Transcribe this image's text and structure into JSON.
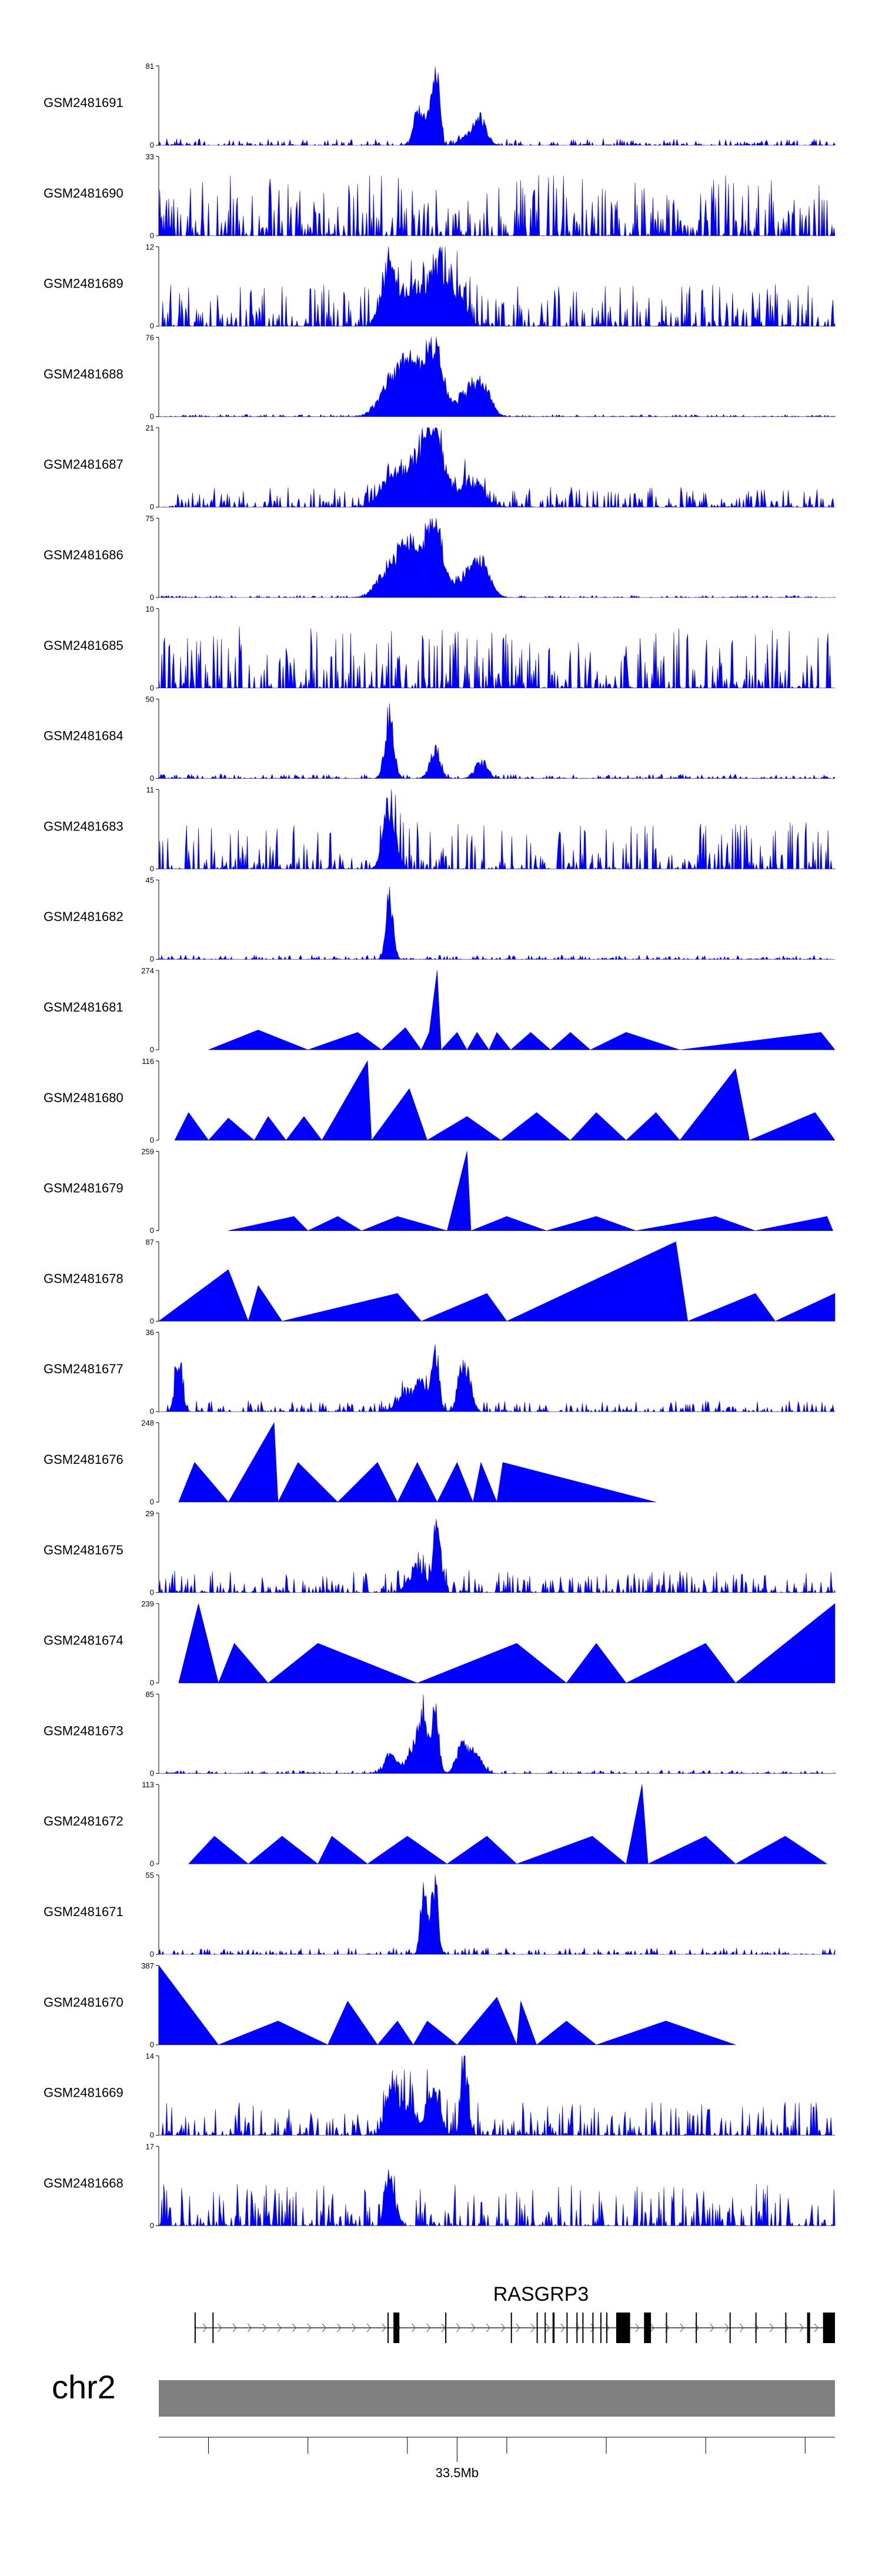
{
  "colors": {
    "signal": "#0000ff",
    "axis": "#000000",
    "ideogram": "#808080",
    "gene": "#000000"
  },
  "chart_data": {
    "type": "area",
    "title": "",
    "xlabel": "",
    "genome": {
      "chromosome": "chr2",
      "xlim_mb": [
        33.35,
        33.69
      ]
    },
    "tracks": [
      {
        "sample": "GSM2481691",
        "ymax_label": "81",
        "ymin_label": "0",
        "style": "dense",
        "peaks": [
          [
            33.49,
            1.0,
            0.0015
          ],
          [
            33.487,
            0.55,
            0.002
          ],
          [
            33.48,
            0.45,
            0.002
          ],
          [
            33.483,
            0.22,
            0.003
          ],
          [
            33.512,
            0.38,
            0.003
          ],
          [
            33.506,
            0.15,
            0.004
          ]
        ],
        "noise": 0.06
      },
      {
        "sample": "GSM2481690",
        "ymax_label": "33",
        "ymin_label": "0",
        "style": "dense",
        "peaks": [],
        "noise": 0.55
      },
      {
        "sample": "GSM2481689",
        "ymax_label": "12",
        "ymin_label": "0",
        "style": "dense",
        "peaks": [
          [
            33.466,
            0.9,
            0.004
          ],
          [
            33.49,
            0.95,
            0.004
          ],
          [
            33.478,
            0.6,
            0.005
          ],
          [
            33.5,
            0.5,
            0.004
          ]
        ],
        "noise": 0.38
      },
      {
        "sample": "GSM2481688",
        "ymax_label": "76",
        "ymin_label": "0",
        "style": "dense",
        "peaks": [
          [
            33.467,
            0.55,
            0.006
          ],
          [
            33.475,
            0.4,
            0.004
          ],
          [
            33.481,
            0.55,
            0.006
          ],
          [
            33.489,
            0.95,
            0.004
          ],
          [
            33.506,
            0.38,
            0.006
          ],
          [
            33.513,
            0.35,
            0.004
          ]
        ],
        "noise": 0.02
      },
      {
        "sample": "GSM2481687",
        "ymax_label": "21",
        "ymin_label": "0",
        "style": "dense",
        "peaks": [
          [
            33.468,
            0.5,
            0.006
          ],
          [
            33.482,
            0.6,
            0.006
          ],
          [
            33.489,
            0.95,
            0.005
          ],
          [
            33.507,
            0.4,
            0.006
          ]
        ],
        "noise": 0.18
      },
      {
        "sample": "GSM2481686",
        "ymax_label": "75",
        "ymin_label": "0",
        "style": "dense",
        "peaks": [
          [
            33.467,
            0.5,
            0.006
          ],
          [
            33.475,
            0.4,
            0.004
          ],
          [
            33.482,
            0.55,
            0.006
          ],
          [
            33.489,
            0.95,
            0.004
          ],
          [
            33.506,
            0.4,
            0.006
          ],
          [
            33.513,
            0.35,
            0.004
          ]
        ],
        "noise": 0.02
      },
      {
        "sample": "GSM2481685",
        "ymax_label": "10",
        "ymin_label": "0",
        "style": "dense",
        "peaks": [],
        "noise": 0.55
      },
      {
        "sample": "GSM2481684",
        "ymax_label": "50",
        "ymin_label": "0",
        "style": "dense",
        "peaks": [
          [
            33.466,
            1.0,
            0.0022
          ],
          [
            33.489,
            0.45,
            0.0025
          ],
          [
            33.512,
            0.25,
            0.003
          ]
        ],
        "noise": 0.04
      },
      {
        "sample": "GSM2481683",
        "ymax_label": "11",
        "ymin_label": "0",
        "style": "dense",
        "peaks": [
          [
            33.466,
            0.95,
            0.003
          ]
        ],
        "noise": 0.42
      },
      {
        "sample": "GSM2481682",
        "ymax_label": "45",
        "ymin_label": "0",
        "style": "dense",
        "peaks": [
          [
            33.466,
            1.0,
            0.0018
          ]
        ],
        "noise": 0.04
      },
      {
        "sample": "GSM2481681",
        "ymax_label": "274",
        "ymin_label": "0",
        "style": "sparse",
        "points": [
          [
            33.375,
            0.0
          ],
          [
            33.4,
            0.25
          ],
          [
            33.425,
            0.0
          ],
          [
            33.45,
            0.22
          ],
          [
            33.462,
            0.0
          ],
          [
            33.474,
            0.28
          ],
          [
            33.482,
            0.0
          ],
          [
            33.486,
            0.22
          ],
          [
            33.49,
            1.0
          ],
          [
            33.492,
            0.0
          ],
          [
            33.5,
            0.22
          ],
          [
            33.505,
            0.0
          ],
          [
            33.51,
            0.22
          ],
          [
            33.516,
            0.0
          ],
          [
            33.52,
            0.22
          ],
          [
            33.527,
            0.0
          ],
          [
            33.537,
            0.22
          ],
          [
            33.547,
            0.0
          ],
          [
            33.557,
            0.22
          ],
          [
            33.567,
            0.0
          ],
          [
            33.585,
            0.22
          ],
          [
            33.612,
            0.0
          ],
          [
            33.683,
            0.22
          ],
          [
            33.69,
            0.0
          ]
        ]
      },
      {
        "sample": "GSM2481680",
        "ymax_label": "116",
        "ymin_label": "0",
        "style": "sparse",
        "points": [
          [
            33.358,
            0.0
          ],
          [
            33.365,
            0.35
          ],
          [
            33.375,
            0.0
          ],
          [
            33.385,
            0.28
          ],
          [
            33.398,
            0.0
          ],
          [
            33.405,
            0.3
          ],
          [
            33.414,
            0.0
          ],
          [
            33.423,
            0.3
          ],
          [
            33.432,
            0.0
          ],
          [
            33.455,
            1.0
          ],
          [
            33.457,
            0.0
          ],
          [
            33.476,
            0.65
          ],
          [
            33.485,
            0.0
          ],
          [
            33.505,
            0.3
          ],
          [
            33.522,
            0.0
          ],
          [
            33.54,
            0.35
          ],
          [
            33.557,
            0.0
          ],
          [
            33.57,
            0.35
          ],
          [
            33.585,
            0.0
          ],
          [
            33.6,
            0.35
          ],
          [
            33.612,
            0.0
          ],
          [
            33.64,
            0.9
          ],
          [
            33.647,
            0.0
          ],
          [
            33.68,
            0.35
          ],
          [
            33.69,
            0.0
          ]
        ]
      },
      {
        "sample": "GSM2481679",
        "ymax_label": "259",
        "ymin_label": "0",
        "style": "sparse",
        "points": [
          [
            33.385,
            0.0
          ],
          [
            33.418,
            0.18
          ],
          [
            33.425,
            0.0
          ],
          [
            33.44,
            0.18
          ],
          [
            33.452,
            0.0
          ],
          [
            33.47,
            0.18
          ],
          [
            33.495,
            0.0
          ],
          [
            33.505,
            1.0
          ],
          [
            33.507,
            0.0
          ],
          [
            33.525,
            0.18
          ],
          [
            33.545,
            0.0
          ],
          [
            33.57,
            0.18
          ],
          [
            33.59,
            0.0
          ],
          [
            33.63,
            0.18
          ],
          [
            33.65,
            0.0
          ],
          [
            33.686,
            0.18
          ],
          [
            33.689,
            0.0
          ]
        ]
      },
      {
        "sample": "GSM2481678",
        "ymax_label": "87",
        "ymin_label": "0",
        "style": "sparse",
        "points": [
          [
            33.35,
            0.0
          ],
          [
            33.385,
            0.65
          ],
          [
            33.395,
            0.0
          ],
          [
            33.4,
            0.45
          ],
          [
            33.412,
            0.0
          ],
          [
            33.47,
            0.35
          ],
          [
            33.482,
            0.0
          ],
          [
            33.515,
            0.35
          ],
          [
            33.525,
            0.0
          ],
          [
            33.61,
            1.0
          ],
          [
            33.616,
            0.0
          ],
          [
            33.65,
            0.35
          ],
          [
            33.66,
            0.0
          ],
          [
            33.69,
            0.35
          ]
        ]
      },
      {
        "sample": "GSM2481677",
        "ymax_label": "36",
        "ymin_label": "0",
        "style": "dense",
        "peaks": [
          [
            33.36,
            0.85,
            0.0018
          ],
          [
            33.489,
            1.0,
            0.0018
          ],
          [
            33.482,
            0.55,
            0.0022
          ],
          [
            33.502,
            0.6,
            0.002
          ],
          [
            33.506,
            0.5,
            0.002
          ],
          [
            33.474,
            0.3,
            0.004
          ]
        ],
        "noise": 0.1
      },
      {
        "sample": "GSM2481676",
        "ymax_label": "248",
        "ymin_label": "0",
        "style": "sparse",
        "points": [
          [
            33.36,
            0.0
          ],
          [
            33.368,
            0.5
          ],
          [
            33.385,
            0.0
          ],
          [
            33.408,
            1.0
          ],
          [
            33.41,
            0.0
          ],
          [
            33.42,
            0.5
          ],
          [
            33.44,
            0.0
          ],
          [
            33.46,
            0.5
          ],
          [
            33.47,
            0.0
          ],
          [
            33.48,
            0.5
          ],
          [
            33.49,
            0.0
          ],
          [
            33.5,
            0.5
          ],
          [
            33.508,
            0.0
          ],
          [
            33.512,
            0.5
          ],
          [
            33.52,
            0.0
          ],
          [
            33.523,
            0.5
          ],
          [
            33.6,
            0.0
          ]
        ]
      },
      {
        "sample": "GSM2481675",
        "ymax_label": "29",
        "ymin_label": "0",
        "style": "dense",
        "peaks": [
          [
            33.49,
            1.0,
            0.0018
          ],
          [
            33.48,
            0.4,
            0.004
          ]
        ],
        "noise": 0.2
      },
      {
        "sample": "GSM2481674",
        "ymax_label": "239",
        "ymin_label": "0",
        "style": "sparse",
        "points": [
          [
            33.36,
            0.0
          ],
          [
            33.37,
            1.0
          ],
          [
            33.38,
            0.0
          ],
          [
            33.388,
            0.5
          ],
          [
            33.405,
            0.0
          ],
          [
            33.43,
            0.5
          ],
          [
            33.48,
            0.0
          ],
          [
            33.53,
            0.5
          ],
          [
            33.555,
            0.0
          ],
          [
            33.57,
            0.5
          ],
          [
            33.585,
            0.0
          ],
          [
            33.625,
            0.5
          ],
          [
            33.64,
            0.0
          ],
          [
            33.69,
            1.0
          ]
        ]
      },
      {
        "sample": "GSM2481673",
        "ymax_label": "85",
        "ymin_label": "0",
        "style": "dense",
        "peaks": [
          [
            33.467,
            0.35,
            0.003
          ],
          [
            33.478,
            0.45,
            0.003
          ],
          [
            33.483,
            0.9,
            0.002
          ],
          [
            33.489,
            1.0,
            0.0018
          ],
          [
            33.503,
            0.45,
            0.003
          ],
          [
            33.51,
            0.3,
            0.003
          ]
        ],
        "noise": 0.03
      },
      {
        "sample": "GSM2481672",
        "ymax_label": "113",
        "ymin_label": "0",
        "style": "sparse",
        "points": [
          [
            33.365,
            0.0
          ],
          [
            33.378,
            0.35
          ],
          [
            33.395,
            0.0
          ],
          [
            33.412,
            0.35
          ],
          [
            33.43,
            0.0
          ],
          [
            33.437,
            0.35
          ],
          [
            33.455,
            0.0
          ],
          [
            33.475,
            0.35
          ],
          [
            33.495,
            0.0
          ],
          [
            33.515,
            0.35
          ],
          [
            33.53,
            0.0
          ],
          [
            33.568,
            0.35
          ],
          [
            33.585,
            0.0
          ],
          [
            33.593,
            1.0
          ],
          [
            33.596,
            0.0
          ],
          [
            33.625,
            0.35
          ],
          [
            33.64,
            0.0
          ],
          [
            33.665,
            0.35
          ],
          [
            33.686,
            0.0
          ]
        ]
      },
      {
        "sample": "GSM2481671",
        "ymax_label": "55",
        "ymin_label": "0",
        "style": "dense",
        "peaks": [
          [
            33.483,
            0.95,
            0.0015
          ],
          [
            33.489,
            1.0,
            0.0015
          ],
          [
            33.486,
            0.3,
            0.002
          ]
        ],
        "noise": 0.06
      },
      {
        "sample": "GSM2481670",
        "ymax_label": "387",
        "ymin_label": "0",
        "style": "sparse",
        "points": [
          [
            33.35,
            1.0
          ],
          [
            33.38,
            0.0
          ],
          [
            33.41,
            0.3
          ],
          [
            33.435,
            0.0
          ],
          [
            33.445,
            0.55
          ],
          [
            33.46,
            0.0
          ],
          [
            33.47,
            0.3
          ],
          [
            33.478,
            0.0
          ],
          [
            33.485,
            0.3
          ],
          [
            33.5,
            0.0
          ],
          [
            33.52,
            0.6
          ],
          [
            33.53,
            0.0
          ],
          [
            33.532,
            0.55
          ],
          [
            33.54,
            0.0
          ],
          [
            33.555,
            0.3
          ],
          [
            33.57,
            0.0
          ],
          [
            33.605,
            0.3
          ],
          [
            33.64,
            0.0
          ]
        ]
      },
      {
        "sample": "GSM2481669",
        "ymax_label": "14",
        "ymin_label": "0",
        "style": "dense",
        "peaks": [
          [
            33.467,
            0.65,
            0.003
          ],
          [
            33.488,
            0.75,
            0.003
          ],
          [
            33.504,
            1.0,
            0.0018
          ],
          [
            33.475,
            0.45,
            0.004
          ]
        ],
        "noise": 0.3
      },
      {
        "sample": "GSM2481668",
        "ymax_label": "17",
        "ymin_label": "0",
        "style": "dense",
        "peaks": [
          [
            33.466,
            1.0,
            0.002
          ]
        ],
        "noise": 0.38
      }
    ],
    "gene": {
      "name": "RASGRP3",
      "strand": "+",
      "start_mb": 33.368,
      "end_mb": 33.69,
      "exons_mb": [
        [
          33.368,
          33.3685
        ],
        [
          33.377,
          33.3775
        ],
        [
          33.465,
          33.4655
        ],
        [
          33.468,
          33.471
        ],
        [
          33.494,
          33.4945
        ],
        [
          33.527,
          33.5275
        ],
        [
          33.54,
          33.5405
        ],
        [
          33.544,
          33.5445
        ],
        [
          33.548,
          33.549
        ],
        [
          33.555,
          33.5555
        ],
        [
          33.56,
          33.5605
        ],
        [
          33.563,
          33.5635
        ],
        [
          33.568,
          33.5685
        ],
        [
          33.572,
          33.5725
        ],
        [
          33.575,
          33.5755
        ],
        [
          33.58,
          33.587
        ],
        [
          33.594,
          33.5975
        ],
        [
          33.605,
          33.6055
        ],
        [
          33.62,
          33.6205
        ],
        [
          33.637,
          33.6375
        ],
        [
          33.65,
          33.6505
        ],
        [
          33.665,
          33.6655
        ],
        [
          33.676,
          33.6775
        ],
        [
          33.684,
          33.69
        ]
      ]
    },
    "ideogram": {
      "label": "chr2"
    },
    "x_axis": {
      "ticks_mb": [
        33.375,
        33.425,
        33.475,
        33.525,
        33.575,
        33.625,
        33.675
      ],
      "label_tick_mb": 33.5,
      "label": "33.5Mb"
    }
  }
}
